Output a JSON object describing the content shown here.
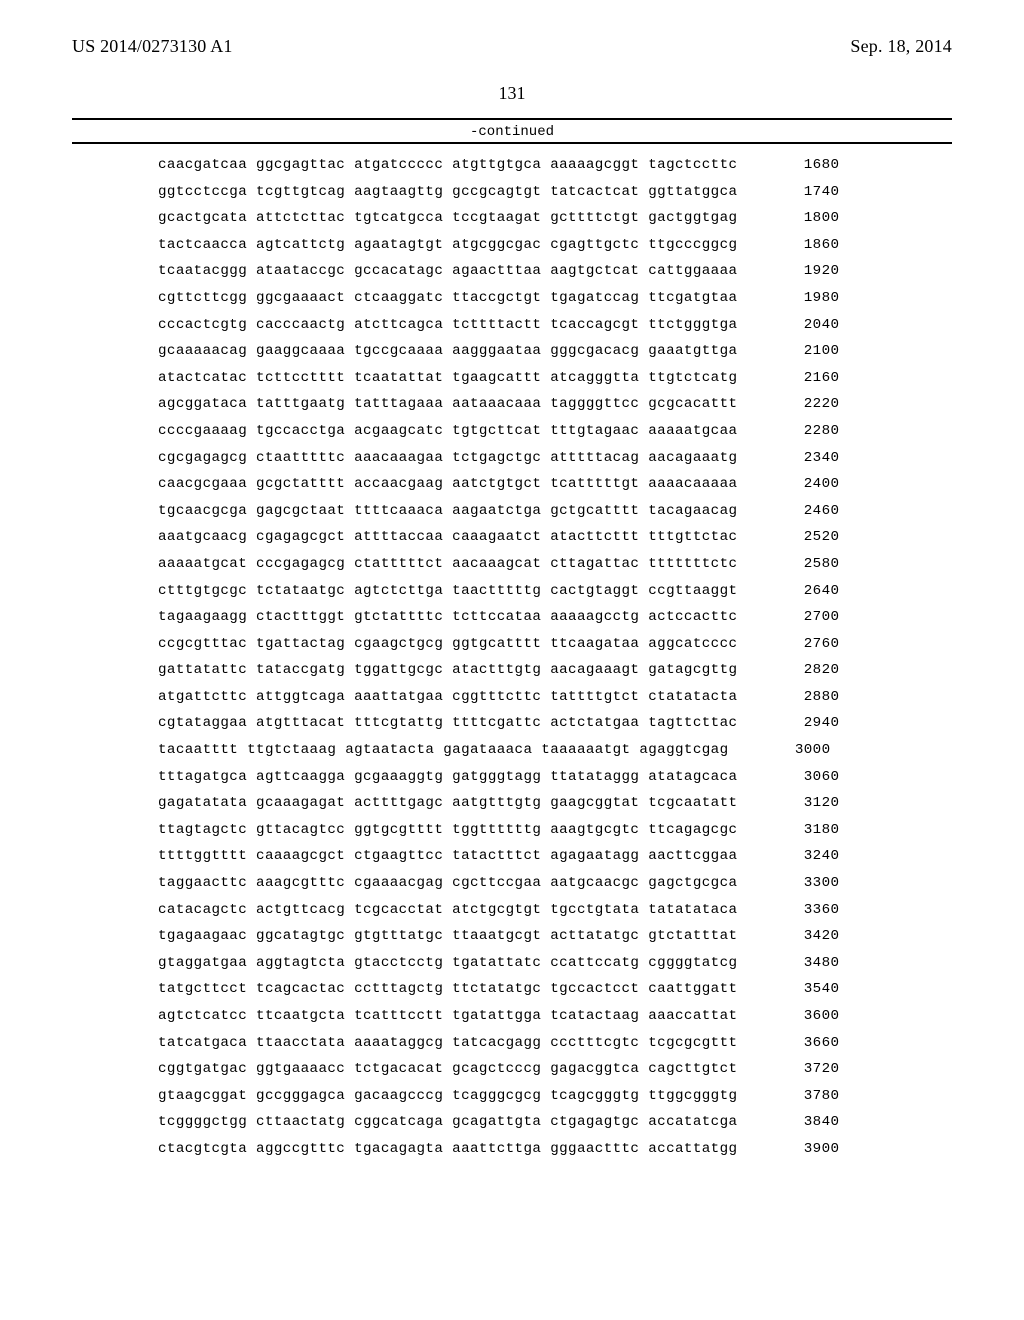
{
  "header": {
    "left": "US 2014/0273130 A1",
    "right": "Sep. 18, 2014"
  },
  "page_number": "131",
  "continued_label": "-continued",
  "sequence": {
    "font_family": "Courier New",
    "font_size_pt": 10,
    "group_gap_spaces": 1,
    "rows": [
      {
        "groups": [
          "caacgatcaa",
          "ggcgagttac",
          "atgatccccc",
          "atgttgtgca",
          "aaaaagcggt",
          "tagctccttc"
        ],
        "pos": 1680
      },
      {
        "groups": [
          "ggtcctccga",
          "tcgttgtcag",
          "aagtaagttg",
          "gccgcagtgt",
          "tatcactcat",
          "ggttatggca"
        ],
        "pos": 1740
      },
      {
        "groups": [
          "gcactgcata",
          "attctcttac",
          "tgtcatgcca",
          "tccgtaagat",
          "gcttttctgt",
          "gactggtgag"
        ],
        "pos": 1800
      },
      {
        "groups": [
          "tactcaacca",
          "agtcattctg",
          "agaatagtgt",
          "atgcggcgac",
          "cgagttgctc",
          "ttgcccggcg"
        ],
        "pos": 1860
      },
      {
        "groups": [
          "tcaatacggg",
          "ataataccgc",
          "gccacatagc",
          "agaactttaa",
          "aagtgctcat",
          "cattggaaaa"
        ],
        "pos": 1920
      },
      {
        "groups": [
          "cgttcttcgg",
          "ggcgaaaact",
          "ctcaaggatc",
          "ttaccgctgt",
          "tgagatccag",
          "ttcgatgtaa"
        ],
        "pos": 1980
      },
      {
        "groups": [
          "cccactcgtg",
          "cacccaactg",
          "atcttcagca",
          "tcttttactt",
          "tcaccagcgt",
          "ttctgggtga"
        ],
        "pos": 2040
      },
      {
        "groups": [
          "gcaaaaacag",
          "gaaggcaaaa",
          "tgccgcaaaa",
          "aagggaataa",
          "gggcgacacg",
          "gaaatgttga"
        ],
        "pos": 2100
      },
      {
        "groups": [
          "atactcatac",
          "tcttcctttt",
          "tcaatattat",
          "tgaagcattt",
          "atcagggtta",
          "ttgtctcatg"
        ],
        "pos": 2160
      },
      {
        "groups": [
          "agcggataca",
          "tatttgaatg",
          "tatttagaaa",
          "aataaacaaa",
          "taggggttcc",
          "gcgcacattt"
        ],
        "pos": 2220
      },
      {
        "groups": [
          "ccccgaaaag",
          "tgccacctga",
          "acgaagcatc",
          "tgtgcttcat",
          "tttgtagaac",
          "aaaaatgcaa"
        ],
        "pos": 2280
      },
      {
        "groups": [
          "cgcgagagcg",
          "ctaatttttc",
          "aaacaaagaa",
          "tctgagctgc",
          "atttttacag",
          "aacagaaatg"
        ],
        "pos": 2340
      },
      {
        "groups": [
          "caacgcgaaa",
          "gcgctatttt",
          "accaacgaag",
          "aatctgtgct",
          "tcatttttgt",
          "aaaacaaaaa"
        ],
        "pos": 2400
      },
      {
        "groups": [
          "tgcaacgcga",
          "gagcgctaat",
          "ttttcaaaca",
          "aagaatctga",
          "gctgcatttt",
          "tacagaacag"
        ],
        "pos": 2460
      },
      {
        "groups": [
          "aaatgcaacg",
          "cgagagcgct",
          "attttaccaa",
          "caaagaatct",
          "atacttcttt",
          "tttgttctac"
        ],
        "pos": 2520
      },
      {
        "groups": [
          "aaaaatgcat",
          "cccgagagcg",
          "ctatttttct",
          "aacaaagcat",
          "cttagattac",
          "tttttttctc"
        ],
        "pos": 2580
      },
      {
        "groups": [
          "ctttgtgcgc",
          "tctataatgc",
          "agtctcttga",
          "taactttttg",
          "cactgtaggt",
          "ccgttaaggt"
        ],
        "pos": 2640
      },
      {
        "groups": [
          "tagaagaagg",
          "ctactttggt",
          "gtctattttc",
          "tcttccataa",
          "aaaaagcctg",
          "actccacttc"
        ],
        "pos": 2700
      },
      {
        "groups": [
          "ccgcgtttac",
          "tgattactag",
          "cgaagctgcg",
          "ggtgcatttt",
          "ttcaagataa",
          "aggcatcccc"
        ],
        "pos": 2760
      },
      {
        "groups": [
          "gattatattc",
          "tataccgatg",
          "tggattgcgc",
          "atactttgtg",
          "aacagaaagt",
          "gatagcgttg"
        ],
        "pos": 2820
      },
      {
        "groups": [
          "atgattcttc",
          "attggtcaga",
          "aaattatgaa",
          "cggtttcttc",
          "tattttgtct",
          "ctatatacta"
        ],
        "pos": 2880
      },
      {
        "groups": [
          "cgtataggaa",
          "atgtttacat",
          "tttcgtattg",
          "ttttcgattc",
          "actctatgaa",
          "tagttcttac"
        ],
        "pos": 2940
      },
      {
        "groups": [
          "tacaatttt",
          "ttgtctaaag",
          "agtaatacta",
          "gagataaaca",
          "taaaaaatgt",
          "agaggtcgag"
        ],
        "pos": 3000
      },
      {
        "groups": [
          "tttagatgca",
          "agttcaagga",
          "gcgaaaggtg",
          "gatgggtagg",
          "ttatataggg",
          "atatagcaca"
        ],
        "pos": 3060
      },
      {
        "groups": [
          "gagatatata",
          "gcaaagagat",
          "acttttgagc",
          "aatgtttgtg",
          "gaagcggtat",
          "tcgcaatatt"
        ],
        "pos": 3120
      },
      {
        "groups": [
          "ttagtagctc",
          "gttacagtcc",
          "ggtgcgtttt",
          "tggttttttg",
          "aaagtgcgtc",
          "ttcagagcgc"
        ],
        "pos": 3180
      },
      {
        "groups": [
          "ttttggtttt",
          "caaaagcgct",
          "ctgaagttcc",
          "tatactttct",
          "agagaatagg",
          "aacttcggaa"
        ],
        "pos": 3240
      },
      {
        "groups": [
          "taggaacttc",
          "aaagcgtttc",
          "cgaaaacgag",
          "cgcttccgaa",
          "aatgcaacgc",
          "gagctgcgca"
        ],
        "pos": 3300
      },
      {
        "groups": [
          "catacagctc",
          "actgttcacg",
          "tcgcacctat",
          "atctgcgtgt",
          "tgcctgtata",
          "tatatataca"
        ],
        "pos": 3360
      },
      {
        "groups": [
          "tgagaagaac",
          "ggcatagtgc",
          "gtgtttatgc",
          "ttaaatgcgt",
          "acttatatgc",
          "gtctatttat"
        ],
        "pos": 3420
      },
      {
        "groups": [
          "gtaggatgaa",
          "aggtagtcta",
          "gtacctcctg",
          "tgatattatc",
          "ccattccatg",
          "cggggtatcg"
        ],
        "pos": 3480
      },
      {
        "groups": [
          "tatgcttcct",
          "tcagcactac",
          "cctttagctg",
          "ttctatatgc",
          "tgccactcct",
          "caattggatt"
        ],
        "pos": 3540
      },
      {
        "groups": [
          "agtctcatcc",
          "ttcaatgcta",
          "tcatttcctt",
          "tgatattgga",
          "tcatactaag",
          "aaaccattat"
        ],
        "pos": 3600
      },
      {
        "groups": [
          "tatcatgaca",
          "ttaacctata",
          "aaaataggcg",
          "tatcacgagg",
          "ccctttcgtc",
          "tcgcgcgttt"
        ],
        "pos": 3660
      },
      {
        "groups": [
          "cggtgatgac",
          "ggtgaaaacc",
          "tctgacacat",
          "gcagctcccg",
          "gagacggtca",
          "cagcttgtct"
        ],
        "pos": 3720
      },
      {
        "groups": [
          "gtaagcggat",
          "gccgggagca",
          "gacaagcccg",
          "tcagggcgcg",
          "tcagcgggtg",
          "ttggcgggtg"
        ],
        "pos": 3780
      },
      {
        "groups": [
          "tcggggctgg",
          "cttaactatg",
          "cggcatcaga",
          "gcagattgta",
          "ctgagagtgc",
          "accatatcga"
        ],
        "pos": 3840
      },
      {
        "groups": [
          "ctacgtcgta",
          "aggccgtttc",
          "tgacagagta",
          "aaattcttga",
          "gggaactttc",
          "accattatgg"
        ],
        "pos": 3900
      }
    ]
  },
  "colors": {
    "text": "#000000",
    "background": "#ffffff",
    "rule": "#000000"
  }
}
